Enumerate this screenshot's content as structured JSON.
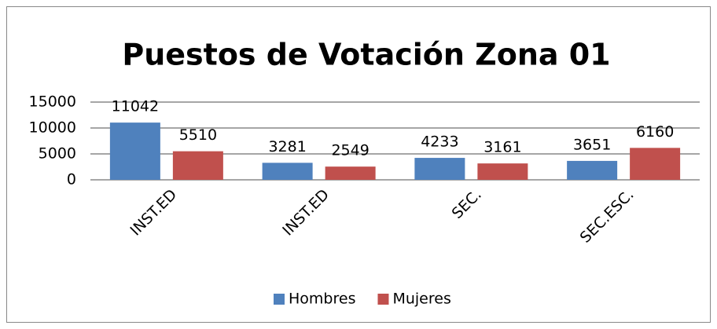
{
  "chart_data": {
    "type": "bar",
    "title": "Puestos de Votación Zona 01",
    "categories": [
      "INST.ED",
      "INST.ED",
      "SEC.",
      "SEC.ESC."
    ],
    "series": [
      {
        "name": "Hombres",
        "color": "#4f81bd",
        "values": [
          11042,
          3281,
          4233,
          3651
        ]
      },
      {
        "name": "Mujeres",
        "color": "#c0504d",
        "values": [
          5510,
          2549,
          3161,
          6160
        ]
      }
    ],
    "ylim": [
      0,
      15000
    ],
    "yticks": [
      0,
      5000,
      10000,
      15000
    ],
    "grid": true,
    "legend": "bottom"
  }
}
